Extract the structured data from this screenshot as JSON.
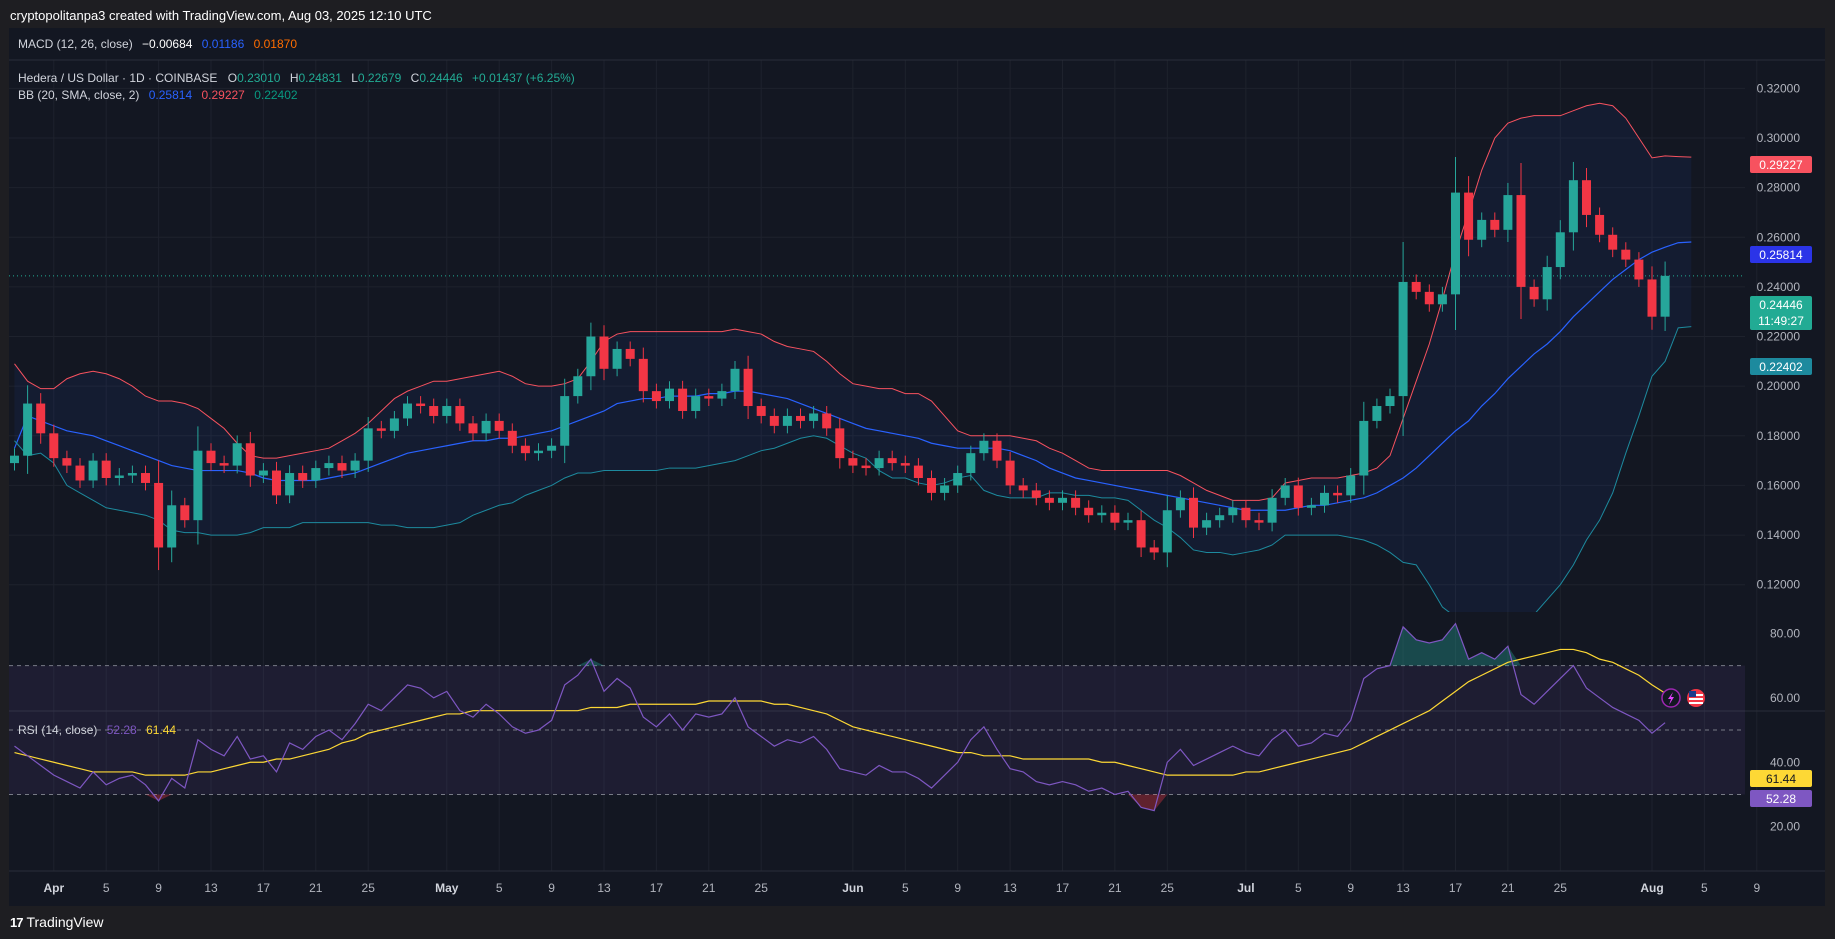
{
  "header": {
    "caption": "cryptopolitanpa3 created with TradingView.com, Aug 03, 2025 12:10 UTC"
  },
  "footer": {
    "logo": "17",
    "brand": "TradingView"
  },
  "macd": {
    "label": "MACD (12, 26, close)",
    "v1": "−0.00684",
    "v2": "0.01186",
    "v3": "0.01870"
  },
  "legend": {
    "symbol": "Hedera / US Dollar · 1D · COINBASE",
    "o_label": "O",
    "o_val": "0.23010",
    "h_label": "H",
    "h_val": "0.24831",
    "l_label": "L",
    "l_val": "0.22679",
    "c_label": "C",
    "c_val": "0.24446",
    "change": "+0.01437 (+6.25%)"
  },
  "bb": {
    "label": "BB (20, SMA, close, 2)",
    "basis": "0.25814",
    "upper": "0.29227",
    "lower": "0.22402"
  },
  "badges": {
    "upper": "0.29227",
    "basis": "0.25814",
    "price": "0.24446",
    "countdown": "11:49:27",
    "lower": "0.22402"
  },
  "rsi": {
    "label": "RSI (14, close)",
    "value": "52.28",
    "ma": "61.44"
  },
  "colors": {
    "bg": "#131722",
    "up": "#26a69a",
    "down": "#f23645",
    "basis": "#2962ff",
    "upper": "#f7525f",
    "lower": "#089981",
    "rsi": "#7e57c2",
    "rsi_ma": "#fdd835",
    "price": "#22ab94"
  },
  "chart_data": {
    "type": "candlestick",
    "instrument": "Hedera / US Dollar · 1D · COINBASE",
    "y_ticks": [
      "0.32000",
      "0.30000",
      "0.28000",
      "0.26000",
      "0.24000",
      "0.22000",
      "0.20000",
      "0.18000",
      "0.16000",
      "0.14000",
      "0.12000"
    ],
    "ylim": [
      0.109,
      0.327
    ],
    "x_ticks": [
      {
        "label": "Apr",
        "i": 3,
        "bold": true
      },
      {
        "label": "5",
        "i": 7
      },
      {
        "label": "9",
        "i": 11
      },
      {
        "label": "13",
        "i": 15
      },
      {
        "label": "17",
        "i": 19
      },
      {
        "label": "21",
        "i": 23
      },
      {
        "label": "25",
        "i": 27
      },
      {
        "label": "May",
        "i": 33,
        "bold": true
      },
      {
        "label": "5",
        "i": 37
      },
      {
        "label": "9",
        "i": 41
      },
      {
        "label": "13",
        "i": 45
      },
      {
        "label": "17",
        "i": 49
      },
      {
        "label": "21",
        "i": 53
      },
      {
        "label": "25",
        "i": 57
      },
      {
        "label": "Jun",
        "i": 64,
        "bold": true
      },
      {
        "label": "5",
        "i": 68
      },
      {
        "label": "9",
        "i": 72
      },
      {
        "label": "13",
        "i": 76
      },
      {
        "label": "17",
        "i": 80
      },
      {
        "label": "21",
        "i": 84
      },
      {
        "label": "25",
        "i": 88
      },
      {
        "label": "Jul",
        "i": 94,
        "bold": true
      },
      {
        "label": "5",
        "i": 98
      },
      {
        "label": "9",
        "i": 102
      },
      {
        "label": "13",
        "i": 106
      },
      {
        "label": "17",
        "i": 110
      },
      {
        "label": "21",
        "i": 114
      },
      {
        "label": "25",
        "i": 118
      },
      {
        "label": "Aug",
        "i": 125,
        "bold": true
      },
      {
        "label": "5",
        "i": 129
      },
      {
        "label": "9",
        "i": 133
      }
    ],
    "close": [
      0.172,
      0.193,
      0.181,
      0.171,
      0.168,
      0.162,
      0.17,
      0.163,
      0.164,
      0.165,
      0.161,
      0.135,
      0.152,
      0.146,
      0.174,
      0.169,
      0.168,
      0.177,
      0.164,
      0.166,
      0.156,
      0.165,
      0.162,
      0.167,
      0.169,
      0.166,
      0.17,
      0.183,
      0.182,
      0.187,
      0.193,
      0.192,
      0.188,
      0.192,
      0.185,
      0.181,
      0.186,
      0.182,
      0.176,
      0.173,
      0.174,
      0.176,
      0.196,
      0.204,
      0.22,
      0.207,
      0.215,
      0.211,
      0.198,
      0.194,
      0.199,
      0.19,
      0.196,
      0.195,
      0.198,
      0.207,
      0.192,
      0.188,
      0.184,
      0.188,
      0.186,
      0.189,
      0.183,
      0.171,
      0.168,
      0.167,
      0.171,
      0.169,
      0.168,
      0.163,
      0.157,
      0.16,
      0.165,
      0.173,
      0.178,
      0.17,
      0.16,
      0.158,
      0.155,
      0.153,
      0.155,
      0.151,
      0.148,
      0.149,
      0.145,
      0.146,
      0.135,
      0.133,
      0.15,
      0.155,
      0.143,
      0.146,
      0.148,
      0.151,
      0.146,
      0.145,
      0.155,
      0.16,
      0.151,
      0.152,
      0.157,
      0.156,
      0.164,
      0.186,
      0.192,
      0.196,
      0.242,
      0.238,
      0.233,
      0.237,
      0.278,
      0.259,
      0.267,
      0.263,
      0.277,
      0.24,
      0.235,
      0.248,
      0.262,
      0.283,
      0.269,
      0.261,
      0.255,
      0.251,
      0.243,
      0.228,
      0.24446
    ],
    "bb_basis": [
      0.175,
      0.188,
      0.186,
      0.184,
      0.182,
      0.181,
      0.18,
      0.178,
      0.176,
      0.174,
      0.172,
      0.17,
      0.168,
      0.167,
      0.166,
      0.166,
      0.166,
      0.166,
      0.165,
      0.163,
      0.162,
      0.162,
      0.162,
      0.162,
      0.163,
      0.164,
      0.165,
      0.167,
      0.169,
      0.171,
      0.173,
      0.174,
      0.175,
      0.176,
      0.177,
      0.178,
      0.178,
      0.179,
      0.179,
      0.18,
      0.181,
      0.182,
      0.184,
      0.186,
      0.188,
      0.19,
      0.193,
      0.194,
      0.195,
      0.195,
      0.196,
      0.196,
      0.196,
      0.197,
      0.197,
      0.198,
      0.198,
      0.197,
      0.196,
      0.195,
      0.193,
      0.191,
      0.189,
      0.187,
      0.185,
      0.183,
      0.182,
      0.181,
      0.18,
      0.179,
      0.177,
      0.176,
      0.175,
      0.175,
      0.175,
      0.175,
      0.174,
      0.172,
      0.17,
      0.167,
      0.165,
      0.163,
      0.162,
      0.161,
      0.16,
      0.159,
      0.158,
      0.157,
      0.156,
      0.155,
      0.154,
      0.153,
      0.152,
      0.151,
      0.15,
      0.15,
      0.15,
      0.15,
      0.151,
      0.152,
      0.152,
      0.153,
      0.154,
      0.155,
      0.157,
      0.16,
      0.163,
      0.167,
      0.172,
      0.177,
      0.182,
      0.186,
      0.192,
      0.197,
      0.203,
      0.208,
      0.213,
      0.217,
      0.222,
      0.228,
      0.233,
      0.238,
      0.243,
      0.247,
      0.251,
      0.254,
      0.256,
      0.2578,
      0.2581
    ],
    "bb_upper": [
      0.209,
      0.202,
      0.199,
      0.199,
      0.203,
      0.205,
      0.206,
      0.205,
      0.203,
      0.2,
      0.196,
      0.194,
      0.194,
      0.193,
      0.191,
      0.187,
      0.183,
      0.177,
      0.172,
      0.171,
      0.171,
      0.172,
      0.173,
      0.174,
      0.175,
      0.178,
      0.181,
      0.185,
      0.19,
      0.195,
      0.198,
      0.2,
      0.202,
      0.202,
      0.203,
      0.204,
      0.205,
      0.206,
      0.204,
      0.201,
      0.2,
      0.2,
      0.201,
      0.203,
      0.21,
      0.218,
      0.221,
      0.222,
      0.222,
      0.222,
      0.222,
      0.222,
      0.222,
      0.222,
      0.222,
      0.223,
      0.222,
      0.221,
      0.218,
      0.216,
      0.215,
      0.214,
      0.21,
      0.205,
      0.201,
      0.2,
      0.199,
      0.199,
      0.197,
      0.197,
      0.194,
      0.188,
      0.182,
      0.18,
      0.18,
      0.18,
      0.18,
      0.179,
      0.178,
      0.175,
      0.173,
      0.17,
      0.167,
      0.166,
      0.166,
      0.166,
      0.166,
      0.166,
      0.166,
      0.164,
      0.161,
      0.158,
      0.156,
      0.154,
      0.154,
      0.154,
      0.155,
      0.161,
      0.162,
      0.163,
      0.163,
      0.163,
      0.164,
      0.165,
      0.167,
      0.172,
      0.187,
      0.202,
      0.217,
      0.235,
      0.254,
      0.27,
      0.287,
      0.3,
      0.306,
      0.308,
      0.309,
      0.309,
      0.309,
      0.311,
      0.313,
      0.314,
      0.313,
      0.308,
      0.3,
      0.292,
      0.2928,
      0.2925,
      0.2923
    ],
    "bb_lower": [
      0.178,
      0.172,
      0.173,
      0.169,
      0.16,
      0.157,
      0.154,
      0.151,
      0.15,
      0.149,
      0.148,
      0.146,
      0.142,
      0.141,
      0.141,
      0.14,
      0.14,
      0.14,
      0.141,
      0.143,
      0.143,
      0.143,
      0.145,
      0.145,
      0.145,
      0.145,
      0.145,
      0.145,
      0.144,
      0.144,
      0.143,
      0.143,
      0.143,
      0.144,
      0.145,
      0.148,
      0.15,
      0.152,
      0.153,
      0.156,
      0.158,
      0.16,
      0.163,
      0.165,
      0.165,
      0.166,
      0.166,
      0.166,
      0.166,
      0.166,
      0.167,
      0.167,
      0.167,
      0.168,
      0.169,
      0.17,
      0.172,
      0.174,
      0.175,
      0.177,
      0.179,
      0.18,
      0.179,
      0.176,
      0.173,
      0.171,
      0.166,
      0.163,
      0.163,
      0.161,
      0.16,
      0.161,
      0.163,
      0.164,
      0.158,
      0.156,
      0.155,
      0.155,
      0.155,
      0.157,
      0.157,
      0.156,
      0.156,
      0.155,
      0.155,
      0.154,
      0.15,
      0.146,
      0.143,
      0.139,
      0.134,
      0.133,
      0.133,
      0.132,
      0.133,
      0.134,
      0.136,
      0.14,
      0.14,
      0.14,
      0.14,
      0.14,
      0.139,
      0.138,
      0.136,
      0.133,
      0.129,
      0.128,
      0.12,
      0.111,
      0.107,
      0.107,
      0.105,
      0.101,
      0.1,
      0.104,
      0.108,
      0.114,
      0.12,
      0.128,
      0.138,
      0.146,
      0.157,
      0.173,
      0.188,
      0.204,
      0.21,
      0.2235,
      0.224
    ],
    "rsi": [
      45,
      42,
      39,
      36,
      34,
      32,
      37,
      33,
      35,
      36,
      33,
      28,
      35,
      32,
      47,
      44,
      42,
      48,
      41,
      42,
      37,
      46,
      44,
      48,
      50,
      47,
      52,
      58,
      56,
      60,
      64,
      63,
      60,
      62,
      56,
      54,
      58,
      55,
      51,
      49,
      50,
      53,
      64,
      67,
      72,
      62,
      66,
      63,
      54,
      51,
      55,
      50,
      55,
      54,
      55,
      60,
      51,
      48,
      45,
      47,
      46,
      48,
      44,
      38,
      37,
      36,
      39,
      37,
      37,
      35,
      32,
      36,
      40,
      47,
      51,
      44,
      38,
      37,
      34,
      33,
      34,
      33,
      31,
      32,
      30,
      31,
      26,
      25,
      40,
      44,
      39,
      41,
      43,
      45,
      43,
      42,
      47,
      50,
      45,
      46,
      49,
      48,
      53,
      66,
      69,
      70,
      82,
      78,
      77,
      78,
      83,
      72,
      74,
      72,
      76,
      61,
      58,
      62,
      66,
      70,
      63,
      60,
      57,
      55,
      53,
      49,
      52.28
    ],
    "rsi_ma": [
      43,
      42,
      41,
      40,
      39,
      38,
      37,
      37,
      37,
      37,
      36,
      36,
      36,
      36,
      37,
      37,
      38,
      39,
      40,
      40,
      41,
      41,
      42,
      43,
      44,
      46,
      47,
      49,
      50,
      51,
      52,
      53,
      54,
      55,
      55,
      56,
      56,
      56,
      56,
      56,
      56,
      56,
      56,
      56,
      57,
      57,
      57,
      58,
      58,
      58,
      58,
      58,
      58,
      59,
      59,
      59,
      59,
      59,
      58,
      58,
      57,
      56,
      55,
      53,
      51,
      50,
      49,
      48,
      47,
      46,
      45,
      44,
      43,
      43,
      42,
      42,
      42,
      41,
      41,
      41,
      41,
      41,
      41,
      40,
      40,
      39,
      38,
      37,
      36,
      36,
      36,
      36,
      36,
      36,
      37,
      37,
      38,
      39,
      40,
      41,
      42,
      43,
      44,
      46,
      48,
      50,
      52,
      54,
      56,
      59,
      62,
      65,
      67,
      69,
      71,
      72,
      73,
      74,
      75,
      75,
      74,
      72,
      71,
      69,
      67,
      64,
      61.44
    ],
    "rsi_ticks": [
      "80.00",
      "60.00",
      "40.00",
      "20.00"
    ],
    "rsi_ylim": [
      16.5,
      86
    ],
    "rsi_bands": [
      70,
      50,
      30
    ]
  }
}
